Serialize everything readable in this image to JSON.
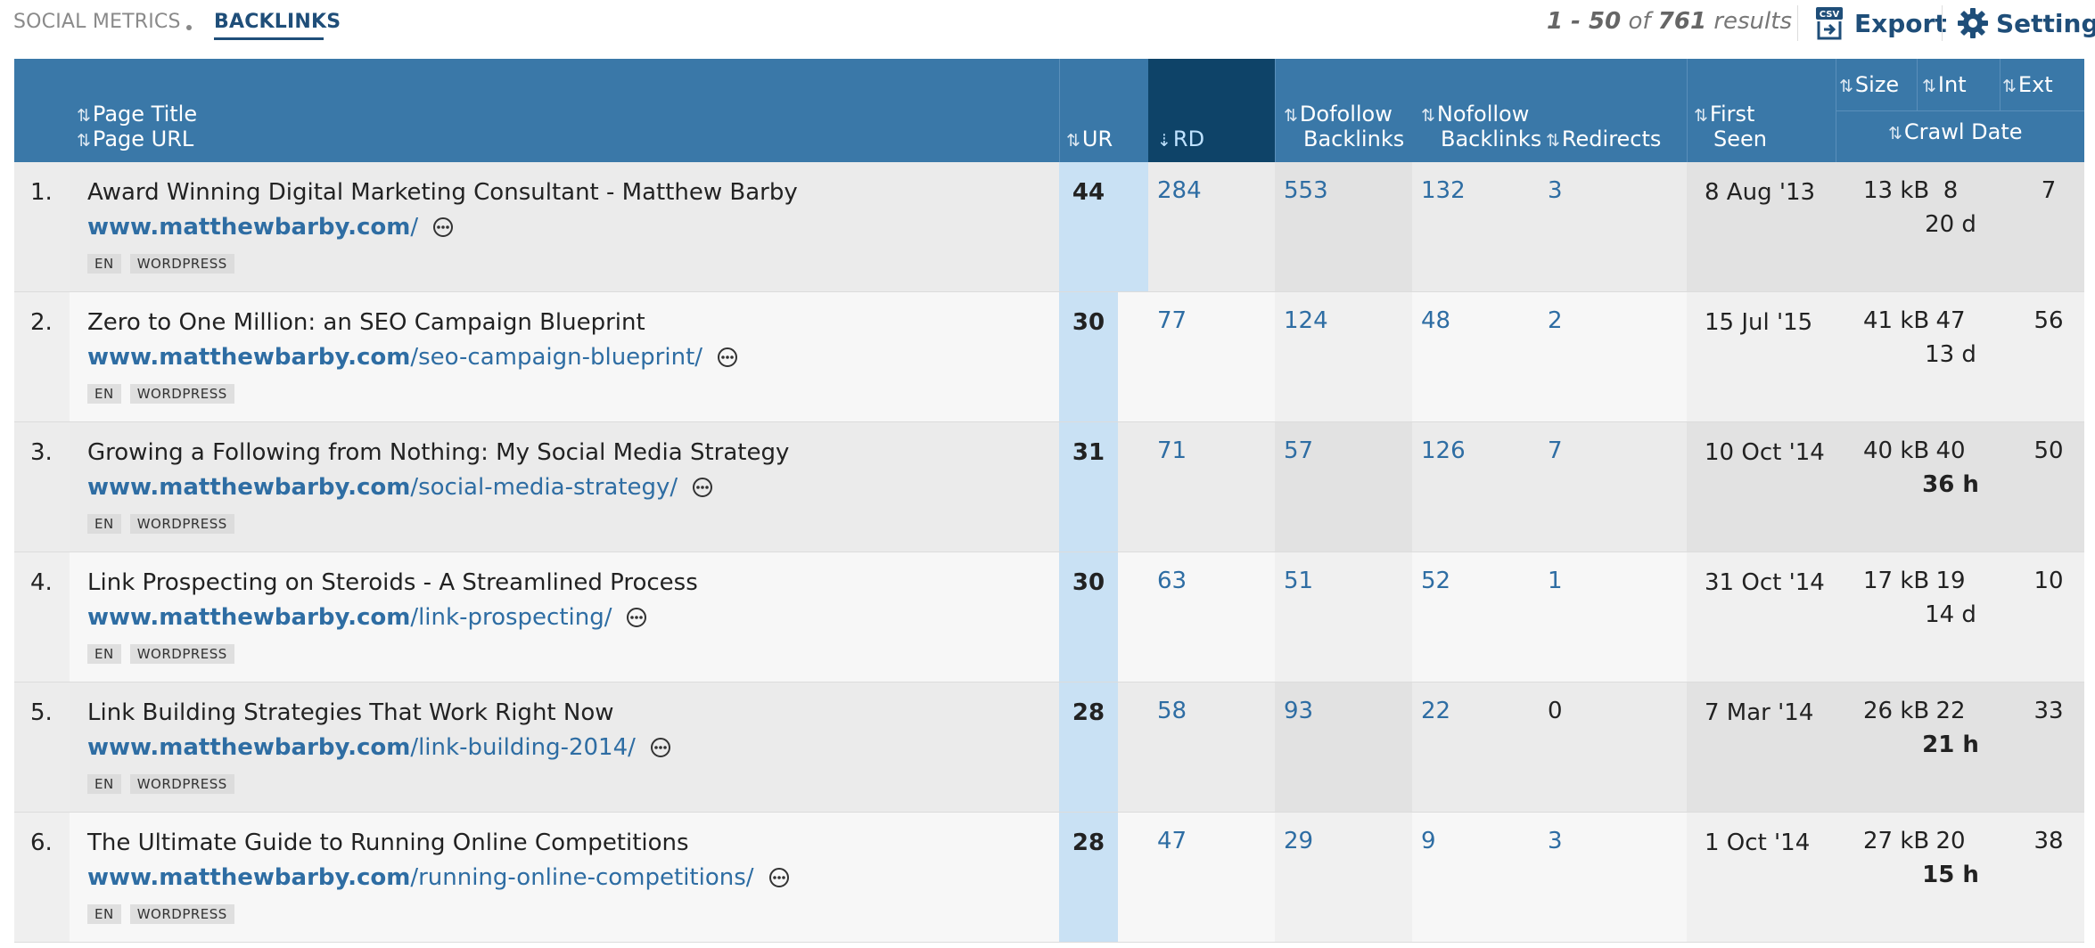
{
  "tabs": {
    "social_metrics": "SOCIAL METRICS",
    "backlinks": "BACKLINKS"
  },
  "results": {
    "range": "1 - 50",
    "of": "of",
    "total": "761",
    "suffix": "results"
  },
  "toolbar": {
    "export_label": "Export",
    "settings_label": "Settings",
    "csv_badge": "CSV"
  },
  "icons": {
    "sort": "sort-arrows-icon",
    "more": "more-options-icon",
    "export": "csv-export-icon",
    "settings": "gear-icon"
  },
  "colors": {
    "header_bg": "#3a78a8",
    "active_header_bg": "#0e4368",
    "link": "#2e6da3",
    "highlight_col": "#c9e1f4"
  },
  "headers": {
    "page_title": "Page Title",
    "page_url": "Page URL",
    "ur": "UR",
    "rd": "RD",
    "dofollow_1": "Dofollow",
    "dofollow_2": "Backlinks",
    "nofollow_1": "Nofollow",
    "nofollow_2": "Backlinks",
    "redirects": "Redirects",
    "first_1": "First",
    "first_2": "Seen",
    "size": "Size",
    "int": "Int",
    "ext": "Ext",
    "crawl_date": "Crawl Date"
  },
  "rows": [
    {
      "num": "1.",
      "title": "Award Winning Digital Marketing Consultant - Matthew Barby",
      "url_domain": "www.matthewbarby.com",
      "url_path": "/",
      "tags": [
        "EN",
        "WORDPRESS"
      ],
      "ur": "44",
      "rd": "284",
      "dofollow": "553",
      "nofollow": "132",
      "redirects": "3",
      "redirects_link": true,
      "first_seen": "8 Aug '13",
      "size": "13 kB",
      "int": "8",
      "ext": "7",
      "crawl": "20 d",
      "crawl_bold": false
    },
    {
      "num": "2.",
      "title": "Zero to One Million: an SEO Campaign Blueprint",
      "url_domain": "www.matthewbarby.com",
      "url_path": "/seo-campaign-blueprint/",
      "tags": [
        "EN",
        "WORDPRESS"
      ],
      "ur": "30",
      "rd": "77",
      "dofollow": "124",
      "nofollow": "48",
      "redirects": "2",
      "redirects_link": true,
      "first_seen": "15 Jul '15",
      "size": "41 kB",
      "int": "47",
      "ext": "56",
      "crawl": "13 d",
      "crawl_bold": false
    },
    {
      "num": "3.",
      "title": "Growing a Following from Nothing: My Social Media Strategy",
      "url_domain": "www.matthewbarby.com",
      "url_path": "/social-media-strategy/",
      "tags": [
        "EN",
        "WORDPRESS"
      ],
      "ur": "31",
      "rd": "71",
      "dofollow": "57",
      "nofollow": "126",
      "redirects": "7",
      "redirects_link": true,
      "first_seen": "10 Oct '14",
      "size": "40 kB",
      "int": "40",
      "ext": "50",
      "crawl": "36 h",
      "crawl_bold": true
    },
    {
      "num": "4.",
      "title": "Link Prospecting on Steroids - A Streamlined Process",
      "url_domain": "www.matthewbarby.com",
      "url_path": "/link-prospecting/",
      "tags": [
        "EN",
        "WORDPRESS"
      ],
      "ur": "30",
      "rd": "63",
      "dofollow": "51",
      "nofollow": "52",
      "redirects": "1",
      "redirects_link": true,
      "first_seen": "31 Oct '14",
      "size": "17 kB",
      "int": "19",
      "ext": "10",
      "crawl": "14 d",
      "crawl_bold": false
    },
    {
      "num": "5.",
      "title": "Link Building Strategies That Work Right Now",
      "url_domain": "www.matthewbarby.com",
      "url_path": "/link-building-2014/",
      "tags": [
        "EN",
        "WORDPRESS"
      ],
      "ur": "28",
      "rd": "58",
      "dofollow": "93",
      "nofollow": "22",
      "redirects": "0",
      "redirects_link": false,
      "first_seen": "7 Mar '14",
      "size": "26 kB",
      "int": "22",
      "ext": "33",
      "crawl": "21 h",
      "crawl_bold": true
    },
    {
      "num": "6.",
      "title": "The Ultimate Guide to Running Online Competitions",
      "url_domain": "www.matthewbarby.com",
      "url_path": "/running-online-competitions/",
      "tags": [
        "EN",
        "WORDPRESS"
      ],
      "ur": "28",
      "rd": "47",
      "dofollow": "29",
      "nofollow": "9",
      "redirects": "3",
      "redirects_link": true,
      "first_seen": "1 Oct '14",
      "size": "27 kB",
      "int": "20",
      "ext": "38",
      "crawl": "15 h",
      "crawl_bold": true
    }
  ]
}
